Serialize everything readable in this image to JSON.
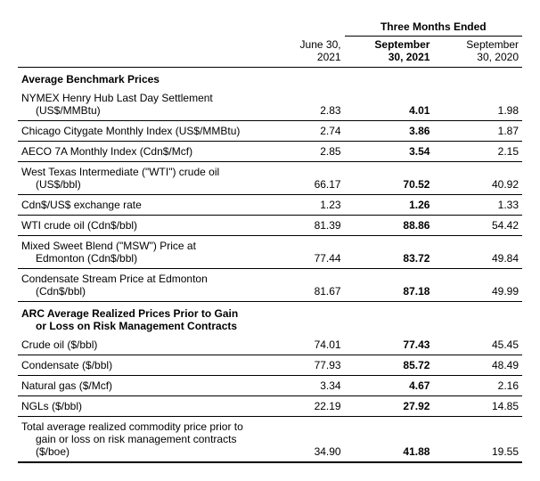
{
  "header": {
    "span_title": "Three Months Ended",
    "dates": [
      {
        "l1": "June 30,",
        "l2": "2021",
        "bold": false
      },
      {
        "l1": "September",
        "l2": "30, 2021",
        "bold": true
      },
      {
        "l1": "September",
        "l2": "30, 2020",
        "bold": false
      }
    ]
  },
  "sections": [
    {
      "title": "Average Benchmark Prices",
      "rows": [
        {
          "label": "NYMEX Henry Hub Last Day Settlement",
          "sub": "(US$/MMBtu)",
          "v": [
            "2.83",
            "4.01",
            "1.98"
          ]
        },
        {
          "label": "Chicago Citygate Monthly Index (US$/MMBtu)",
          "v": [
            "2.74",
            "3.86",
            "1.87"
          ]
        },
        {
          "label": "AECO 7A Monthly Index (Cdn$/Mcf)",
          "v": [
            "2.85",
            "3.54",
            "2.15"
          ]
        },
        {
          "label": "West Texas Intermediate (\"WTI\") crude oil",
          "sub": "(US$/bbl)",
          "v": [
            "66.17",
            "70.52",
            "40.92"
          ]
        },
        {
          "label": "Cdn$/US$ exchange rate",
          "v": [
            "1.23",
            "1.26",
            "1.33"
          ]
        },
        {
          "label": "WTI crude oil (Cdn$/bbl)",
          "v": [
            "81.39",
            "88.86",
            "54.42"
          ]
        },
        {
          "label": "Mixed Sweet Blend (\"MSW\") Price at",
          "sub": "Edmonton (Cdn$/bbl)",
          "v": [
            "77.44",
            "83.72",
            "49.84"
          ]
        },
        {
          "label": "Condensate Stream Price at Edmonton",
          "sub": "(Cdn$/bbl)",
          "v": [
            "81.67",
            "87.18",
            "49.99"
          ]
        }
      ]
    },
    {
      "title": "ARC Average Realized Prices Prior to Gain",
      "title_sub": "or Loss on Risk Management Contracts",
      "rows": [
        {
          "label": "Crude oil ($/bbl)",
          "v": [
            "74.01",
            "77.43",
            "45.45"
          ]
        },
        {
          "label": "Condensate ($/bbl)",
          "v": [
            "77.93",
            "85.72",
            "48.49"
          ]
        },
        {
          "label": "Natural gas ($/Mcf)",
          "v": [
            "3.34",
            "4.67",
            "2.16"
          ]
        },
        {
          "label": "NGLs ($/bbl)",
          "v": [
            "22.19",
            "27.92",
            "14.85"
          ]
        }
      ]
    }
  ],
  "total": {
    "label": "Total average realized commodity price prior to",
    "sub1": "gain or loss on risk management contracts",
    "sub2": "($/boe)",
    "v": [
      "34.90",
      "41.88",
      "19.55"
    ]
  }
}
